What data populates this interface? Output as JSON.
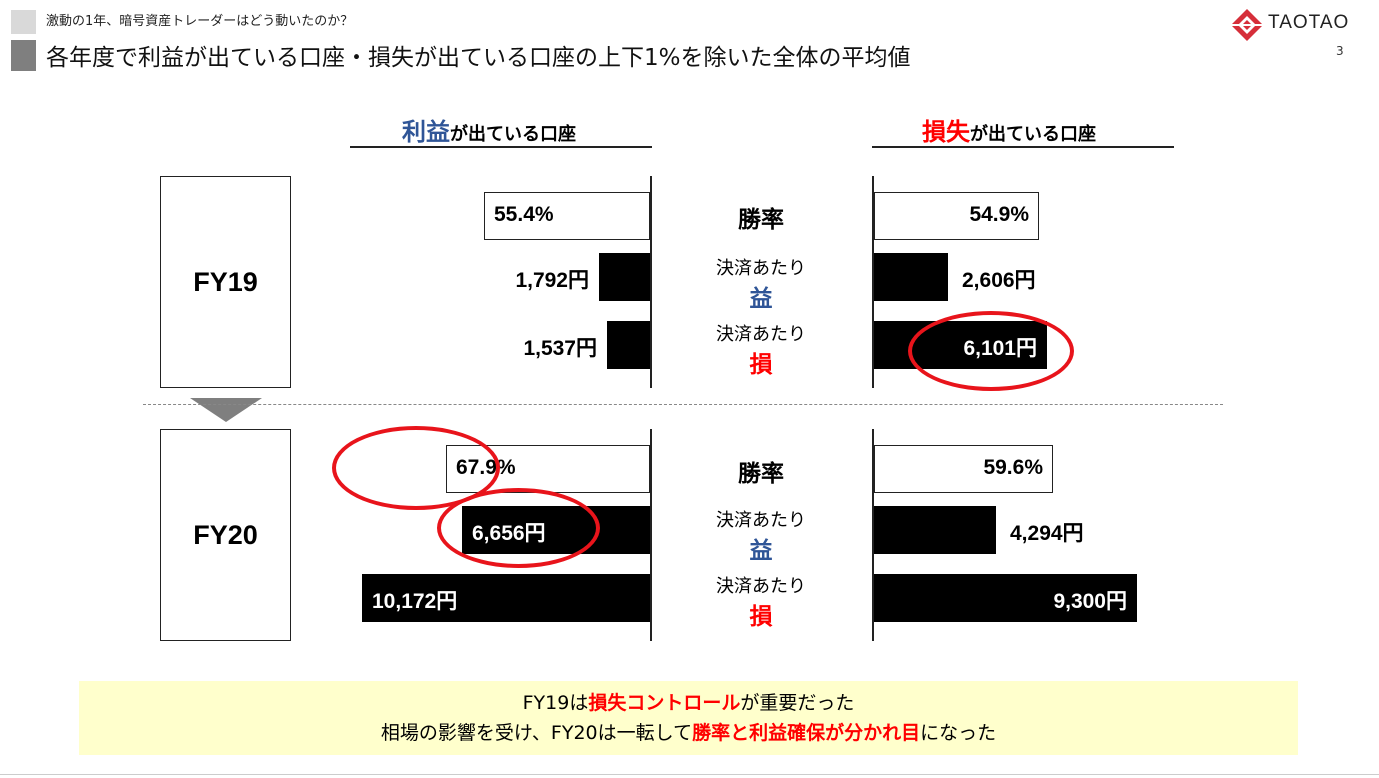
{
  "header": {
    "breadcrumb": "激動の1年、暗号資産トレーダーはどう動いたのか？",
    "title": "各年度で利益が出ている口座・損失が出ている口座の上下1%を除いた全体の平均値",
    "logo_text": "TAOTAO",
    "page_number": "3"
  },
  "columns": {
    "profit": {
      "head_strong": "利益",
      "head_rest": "が出ている口座"
    },
    "loss": {
      "head_strong": "損失",
      "head_rest": "が出ている口座"
    }
  },
  "middle_labels": {
    "win_rate": "勝率",
    "per_settlement": "決済あたり",
    "gain": "益",
    "loss": "損"
  },
  "chart_data": {
    "type": "bar",
    "groups": [
      {
        "label": "FY19",
        "profit_accounts": {
          "win_rate": {
            "value": 55.4,
            "label": "55.4%"
          },
          "avg_gain": {
            "value": 1792,
            "label": "1,792円"
          },
          "avg_loss": {
            "value": 1537,
            "label": "1,537円"
          }
        },
        "loss_accounts": {
          "win_rate": {
            "value": 54.9,
            "label": "54.9%"
          },
          "avg_gain": {
            "value": 2606,
            "label": "2,606円"
          },
          "avg_loss": {
            "value": 6101,
            "label": "6,101円"
          }
        }
      },
      {
        "label": "FY20",
        "profit_accounts": {
          "win_rate": {
            "value": 67.9,
            "label": "67.9%"
          },
          "avg_gain": {
            "value": 6656,
            "label": "6,656円"
          },
          "avg_loss": {
            "value": 10172,
            "label": "10,172円"
          }
        },
        "loss_accounts": {
          "win_rate": {
            "value": 59.6,
            "label": "59.6%"
          },
          "avg_gain": {
            "value": 4294,
            "label": "4,294円"
          },
          "avg_loss": {
            "value": 9300,
            "label": "9,300円"
          }
        }
      }
    ]
  },
  "summary": {
    "line1_a": "FY19は",
    "line1_hl": "損失コントロール",
    "line1_b": "が重要だった",
    "line2_a": "相場の影響を受け、FY20は一転して",
    "line2_hl": "勝率と利益確保が分かれ目",
    "line2_b": "になった"
  }
}
